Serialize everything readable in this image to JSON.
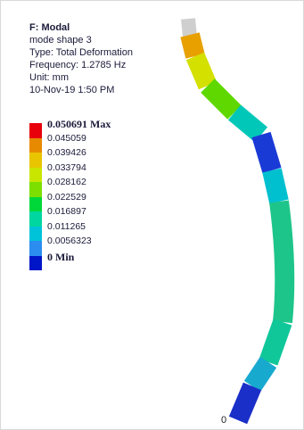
{
  "header": {
    "title": "F: Modal",
    "lines": [
      "mode shape 3",
      "Type: Total Deformation",
      "Frequency: 1.2785 Hz",
      "Unit: mm",
      "10-Nov-19 1:50 PM"
    ]
  },
  "legend": {
    "entries": [
      {
        "label": "0.050691 Max",
        "color": "#e8000b"
      },
      {
        "label": "0.045059",
        "color": "#e88a00"
      },
      {
        "label": "0.039426",
        "color": "#e8c500"
      },
      {
        "label": "0.033794",
        "color": "#c8e600"
      },
      {
        "label": "0.028162",
        "color": "#7ddf00"
      },
      {
        "label": "0.022529",
        "color": "#00d83a"
      },
      {
        "label": "0.016897",
        "color": "#00d6a0"
      },
      {
        "label": "0.011265",
        "color": "#00c3d9"
      },
      {
        "label": "0.0056323",
        "color": "#2b8df0"
      },
      {
        "label": "0 Min",
        "color": "#0014c8"
      }
    ]
  },
  "axis_label": "0"
}
